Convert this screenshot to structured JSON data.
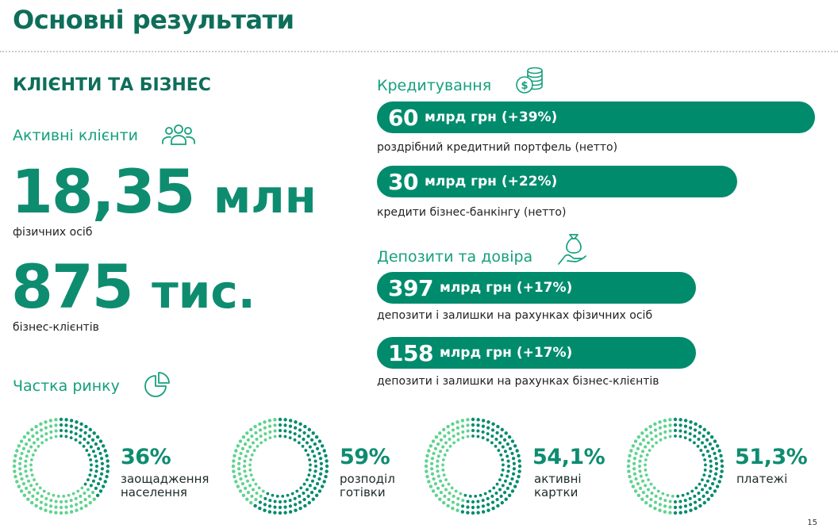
{
  "page": {
    "title": "Основні результати",
    "page_number": "15"
  },
  "clients": {
    "section_title": "КЛІЄНТИ ТА БІЗНЕС",
    "active_label": "Активні клієнти",
    "individuals_value": "18,35",
    "individuals_unit": "млн",
    "individuals_caption": "фізичних осіб",
    "business_value": "875",
    "business_unit": "тис.",
    "business_caption": "бізнес-клієнтів"
  },
  "market_share": {
    "label": "Частка ринку",
    "items": [
      {
        "value": "36%",
        "label_line1": "заощадження",
        "label_line2": "населення",
        "share": 0.36
      },
      {
        "value": "59%",
        "label_line1": "розподіл",
        "label_line2": "готівки",
        "share": 0.59
      },
      {
        "value": "54,1%",
        "label_line1": "активні",
        "label_line2": "картки",
        "share": 0.541
      },
      {
        "value": "51,3%",
        "label_line1": "платежі",
        "label_line2": "",
        "share": 0.513
      }
    ]
  },
  "lending": {
    "title": "Кредитування",
    "items": [
      {
        "amount": "60",
        "rest": "млрд грн (+39%)",
        "caption": "роздрібний кредитний портфель (нетто)"
      },
      {
        "amount": "30",
        "rest": "млрд грн (+22%)",
        "caption": "кредити бізнес-банкінгу (нетто)"
      }
    ]
  },
  "deposits": {
    "title": "Депозити та довіра",
    "items": [
      {
        "amount": "397",
        "rest": "млрд грн (+17%)",
        "caption": "депозити і залишки на рахунках фізичних осіб"
      },
      {
        "amount": "158",
        "rest": "млрд грн (+17%)",
        "caption": "депозити і залишки на рахунках бізнес-клієнтів"
      }
    ]
  },
  "colors": {
    "dark_green": "#0e6e5a",
    "accent_green": "#008b6d",
    "light_green": "#5fd38f"
  },
  "icons": [
    "users-icon",
    "coins-icon",
    "money-bag-hand-icon",
    "pie-chart-icon"
  ]
}
